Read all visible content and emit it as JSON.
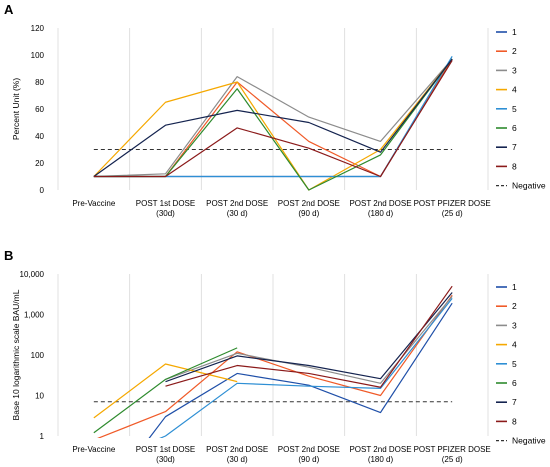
{
  "chart_data": [
    {
      "panel": "A",
      "type": "line",
      "ylabel": "Percent Unit (%)",
      "xlabel": "",
      "ylim": [
        0,
        120
      ],
      "yticks": [
        0,
        20,
        40,
        60,
        80,
        100,
        120
      ],
      "grid": "vertical",
      "legend": "right",
      "categories": [
        [
          "Pre-Vaccine"
        ],
        [
          "POST 1st DOSE",
          "(30d)"
        ],
        [
          "POST 2nd DOSE",
          "(30 d)"
        ],
        [
          "POST 2nd DOSE",
          "(90 d)"
        ],
        [
          "POST 2nd DOSE",
          "(180 d)"
        ],
        [
          "POST PFIZER DOSE",
          "(25 d)"
        ]
      ],
      "series": [
        {
          "name": "1",
          "color": "#1f4fa8",
          "values": [
            10,
            10,
            10,
            10,
            10,
            97
          ]
        },
        {
          "name": "2",
          "color": "#f05a28",
          "values": [
            10,
            10,
            80,
            36,
            10,
            97
          ]
        },
        {
          "name": "3",
          "color": "#8c8c8c",
          "values": [
            10,
            12,
            84,
            54,
            36,
            97
          ]
        },
        {
          "name": "4",
          "color": "#f5a800",
          "values": [
            10,
            65,
            80,
            0,
            30,
            97
          ]
        },
        {
          "name": "5",
          "color": "#2e8fd4",
          "values": [
            10,
            10,
            10,
            10,
            10,
            99
          ]
        },
        {
          "name": "6",
          "color": "#2e8b2e",
          "values": [
            10,
            10,
            75,
            0,
            26,
            97
          ]
        },
        {
          "name": "7",
          "color": "#14234f",
          "values": [
            10,
            48,
            59,
            50,
            28,
            97
          ]
        },
        {
          "name": "8",
          "color": "#8b1a1a",
          "values": [
            10,
            10,
            46,
            31,
            10,
            96
          ]
        }
      ],
      "reference_lines": [
        {
          "name": "Negative",
          "y": 30,
          "style": "dashed",
          "color": "#333333"
        }
      ]
    },
    {
      "panel": "B",
      "type": "line",
      "ylabel": "Base 10 logarithmic scale BAU/mL",
      "xlabel": "",
      "yscale": "log",
      "ylim": [
        1,
        10000
      ],
      "yticks": [
        1,
        10,
        100,
        1000,
        10000
      ],
      "ytick_labels": [
        "1",
        "10",
        "100",
        "1,000",
        "10,000"
      ],
      "grid": "vertical",
      "legend": "right",
      "categories": [
        [
          "Pre-Vaccine"
        ],
        [
          "POST 1st DOSE",
          "(30d)"
        ],
        [
          "POST 2nd DOSE",
          "(30 d)"
        ],
        [
          "POST 2nd DOSE",
          "(90 d)"
        ],
        [
          "POST 2nd DOSE",
          "(180 d)"
        ],
        [
          "POST PFIZER DOSE",
          "(25 d)"
        ]
      ],
      "series": [
        {
          "name": "1",
          "color": "#1f4fa8",
          "values": [
            null,
            3,
            35,
            18,
            3.8,
            1900
          ]
        },
        {
          "name": "2",
          "color": "#f05a28",
          "values": [
            0.8,
            4,
            120,
            30,
            10,
            3000
          ]
        },
        {
          "name": "3",
          "color": "#8c8c8c",
          "values": [
            null,
            25,
            110,
            50,
            20,
            2800
          ]
        },
        {
          "name": "4",
          "color": "#f5a800",
          "values": [
            2.8,
            60,
            22,
            null,
            null,
            null
          ]
        },
        {
          "name": "5",
          "color": "#2e8fd4",
          "values": [
            null,
            1,
            20,
            17,
            15,
            2500
          ]
        },
        {
          "name": "6",
          "color": "#2e8b2e",
          "values": [
            1.2,
            25,
            150,
            null,
            null,
            null
          ]
        },
        {
          "name": "7",
          "color": "#14234f",
          "values": [
            null,
            22,
            95,
            55,
            26,
            3500
          ]
        },
        {
          "name": "8",
          "color": "#8b1a1a",
          "values": [
            null,
            17,
            55,
            35,
            16,
            5000
          ]
        }
      ],
      "reference_lines": [
        {
          "name": "Negative",
          "y": 7,
          "style": "dashed",
          "color": "#333333"
        }
      ]
    }
  ]
}
